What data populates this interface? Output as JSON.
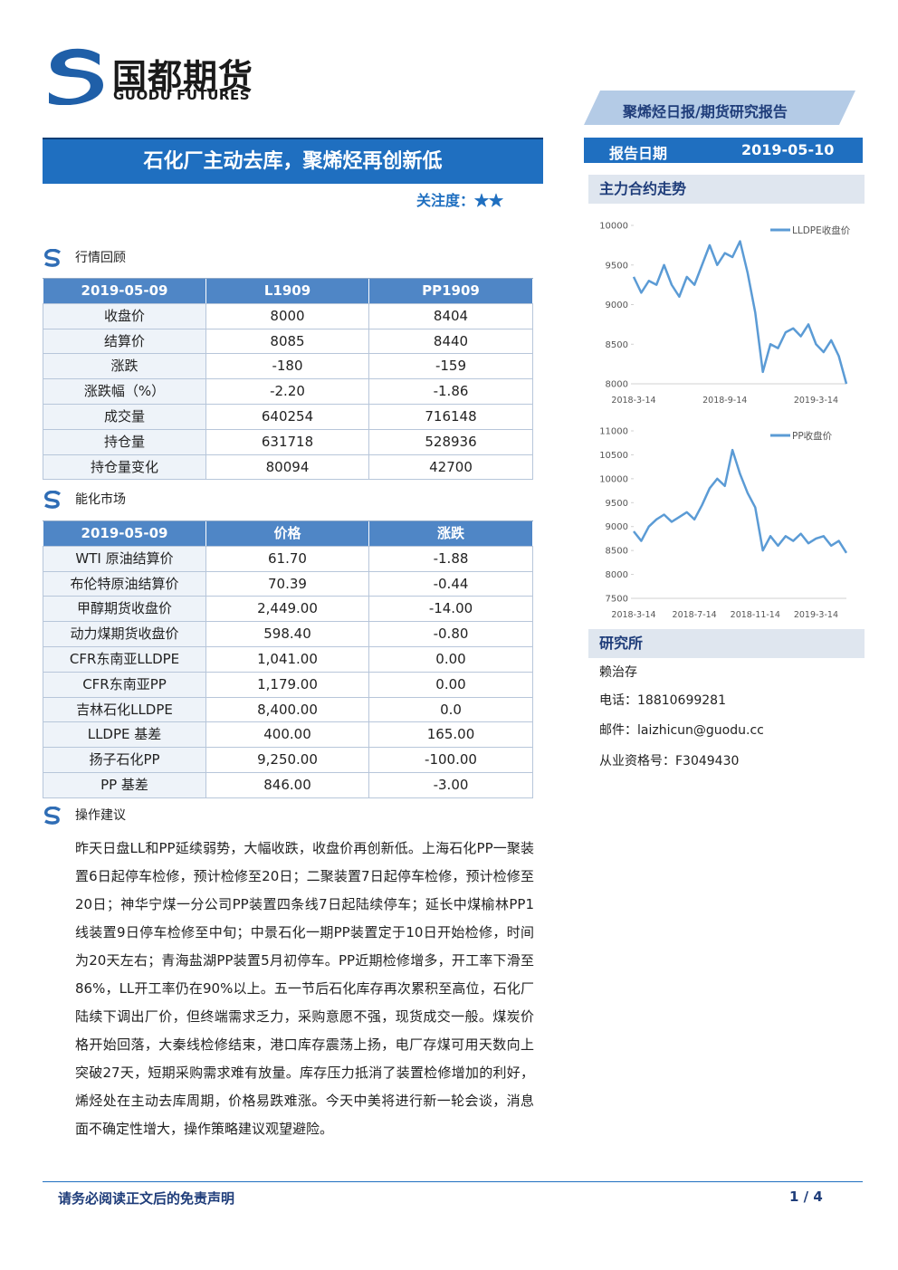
{
  "header": {
    "logo_cn": "国都期货",
    "logo_en": "GUODU FUTURES",
    "report_type": "聚烯烃日报/期货研究报告",
    "title": "石化厂主动去库，聚烯烃再创新低",
    "attention_label": "关注度：",
    "stars": "★★",
    "report_date_label": "报告日期",
    "report_date": "2019-05-10"
  },
  "market_review": {
    "heading": "行情回顾",
    "table": {
      "header": [
        "2019-05-09",
        "L1909",
        "PP1909"
      ],
      "rows": [
        [
          "收盘价",
          "8000",
          "8404"
        ],
        [
          "结算价",
          "8085",
          "8440"
        ],
        [
          "涨跌",
          "-180",
          "-159"
        ],
        [
          "涨跌幅（%）",
          "-2.20",
          "-1.86"
        ],
        [
          "成交量",
          "640254",
          "716148"
        ],
        [
          "持仓量",
          "631718",
          "528936"
        ],
        [
          "持仓量变化",
          "80094",
          "42700"
        ]
      ]
    }
  },
  "energy_market": {
    "heading": "能化市场",
    "table": {
      "header": [
        "2019-05-09",
        "价格",
        "涨跌"
      ],
      "rows": [
        [
          "WTI 原油结算价",
          "61.70",
          "-1.88"
        ],
        [
          "布伦特原油结算价",
          "70.39",
          "-0.44"
        ],
        [
          "甲醇期货收盘价",
          "2,449.00",
          "-14.00"
        ],
        [
          "动力煤期货收盘价",
          "598.40",
          "-0.80"
        ],
        [
          "CFR东南亚LLDPE",
          "1,041.00",
          "0.00"
        ],
        [
          "CFR东南亚PP",
          "1,179.00",
          "0.00"
        ],
        [
          "吉林石化LLDPE",
          "8,400.00",
          "0.0"
        ],
        [
          "LLDPE 基差",
          "400.00",
          "165.00"
        ],
        [
          "扬子石化PP",
          "9,250.00",
          "-100.00"
        ],
        [
          "PP 基差",
          "846.00",
          "-3.00"
        ]
      ]
    }
  },
  "advice": {
    "heading": "操作建议",
    "body": "昨天日盘LL和PP延续弱势，大幅收跌，收盘价再创新低。上海石化PP一聚装置6日起停车检修，预计检修至20日；二聚装置7日起停车检修，预计检修至20日；神华宁煤一分公司PP装置四条线7日起陆续停车；延长中煤榆林PP1线装置9日停车检修至中旬；中景石化一期PP装置定于10日开始检修，时间为20天左右；青海盐湖PP装置5月初停车。PP近期检修增多，开工率下滑至86%，LL开工率仍在90%以上。五一节后石化库存再次累积至高位，石化厂陆续下调出厂价，但终端需求乏力，采购意愿不强，现货成交一般。煤炭价格开始回落，大秦线检修结束，港口库存震荡上扬，电厂存煤可用天数向上突破27天，短期采购需求难有放量。库存压力抵消了装置检修增加的利好，烯烃处在主动去库周期，价格易跌难涨。今天中美将进行新一轮会谈，消息面不确定性增大，操作策略建议观望避险。"
  },
  "sidebar": {
    "chart_heading": "主力合约走势",
    "institute_heading": "研究所",
    "analyst": "赖治存",
    "phone": "电话：18810699281",
    "email": "邮件：laizhicun@guodu.cc",
    "license": "从业资格号：F3049430"
  },
  "footer": {
    "disclaimer": "请务必阅读正文后的免责声明",
    "page": "1 / 4"
  },
  "chart_data": [
    {
      "type": "line",
      "categories": [
        "2018-3-14",
        null,
        null,
        null,
        null,
        null,
        null,
        null,
        null,
        null,
        null,
        null,
        "2018-9-14",
        null,
        null,
        null,
        null,
        null,
        null,
        null,
        null,
        null,
        null,
        null,
        "2019-3-14",
        null,
        null,
        null,
        null
      ],
      "series": [
        {
          "name": "LLDPE收盘价",
          "color": "#5b9bd5",
          "values": [
            9350,
            9150,
            9300,
            9250,
            9500,
            9250,
            9100,
            9350,
            9250,
            9500,
            9750,
            9500,
            9650,
            9600,
            9800,
            9400,
            8900,
            8150,
            8500,
            8450,
            8650,
            8700,
            8600,
            8750,
            8500,
            8400,
            8550,
            8350,
            8000
          ]
        }
      ],
      "ylim": [
        8000,
        10000
      ],
      "yticks": [
        8000,
        8500,
        9000,
        9500,
        10000
      ],
      "legend": "upper-right"
    },
    {
      "type": "line",
      "categories": [
        "2018-3-14",
        null,
        null,
        null,
        null,
        null,
        null,
        null,
        "2018-7-14",
        null,
        null,
        null,
        null,
        null,
        null,
        null,
        "2018-11-14",
        null,
        null,
        null,
        null,
        null,
        null,
        null,
        "2019-3-14",
        null,
        null,
        null,
        null
      ],
      "series": [
        {
          "name": "PP收盘价",
          "color": "#5b9bd5",
          "values": [
            8900,
            8700,
            9000,
            9150,
            9250,
            9100,
            9200,
            9300,
            9150,
            9450,
            9800,
            10000,
            9850,
            10600,
            10100,
            9700,
            9400,
            8500,
            8800,
            8600,
            8800,
            8700,
            8850,
            8650,
            8750,
            8800,
            8600,
            8700,
            8450
          ]
        }
      ],
      "ylim": [
        7500,
        11000
      ],
      "yticks": [
        7500,
        8000,
        8500,
        9000,
        9500,
        10000,
        10500,
        11000
      ],
      "legend": "upper-right"
    }
  ]
}
